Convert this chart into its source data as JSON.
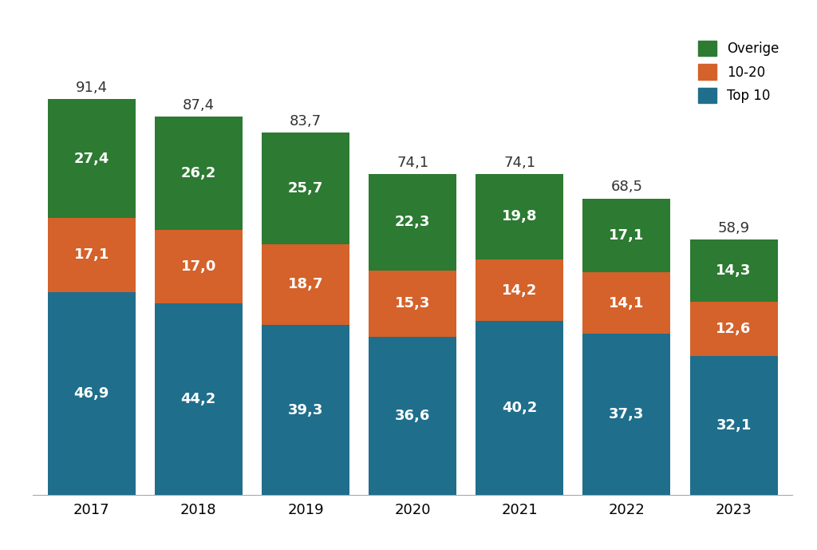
{
  "years": [
    "2017",
    "2018",
    "2019",
    "2020",
    "2021",
    "2022",
    "2023"
  ],
  "top10": [
    46.9,
    44.2,
    39.3,
    36.6,
    40.2,
    37.3,
    32.1
  ],
  "mid": [
    17.1,
    17.0,
    18.7,
    15.3,
    14.2,
    14.1,
    12.6
  ],
  "overige": [
    27.4,
    26.2,
    25.7,
    22.3,
    19.8,
    17.1,
    14.3
  ],
  "totals": [
    91.4,
    87.4,
    83.7,
    74.1,
    74.1,
    68.5,
    58.9
  ],
  "color_top10": "#1F6E8C",
  "color_mid": "#D4622A",
  "color_overige": "#2D7A32",
  "bar_width": 0.82,
  "legend_labels": [
    "Overige",
    "10-20",
    "Top 10"
  ],
  "label_color": "white",
  "total_label_color": "#333333",
  "fontsize_bar": 13,
  "fontsize_total": 13,
  "fontsize_axis": 13,
  "fontsize_legend": 12,
  "ylim": [
    0,
    108
  ],
  "background_color": "#ffffff"
}
